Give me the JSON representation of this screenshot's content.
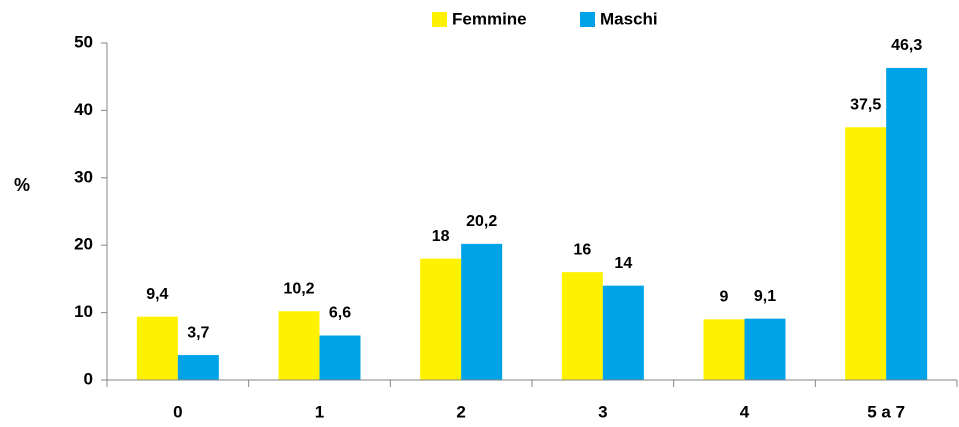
{
  "chart_data": {
    "type": "bar",
    "categories": [
      "0",
      "1",
      "2",
      "3",
      "4",
      "5 a 7"
    ],
    "series": [
      {
        "name": "Femmine",
        "color": "#fff200",
        "values": [
          9.4,
          10.2,
          18,
          16,
          9,
          37.5
        ],
        "value_labels": [
          "9,4",
          "10,2",
          "18",
          "16",
          "9",
          "37,5"
        ]
      },
      {
        "name": "Maschi",
        "color": "#00a2e8",
        "values": [
          3.7,
          6.6,
          20.2,
          14,
          9.1,
          46.3
        ],
        "value_labels": [
          "3,7",
          "6,6",
          "20,2",
          "14",
          "9,1",
          "46,3"
        ]
      }
    ],
    "ylabel": "%",
    "ylim": [
      0,
      50
    ],
    "yticks": [
      0,
      10,
      20,
      30,
      40,
      50
    ],
    "grid": false,
    "legend": "top"
  }
}
